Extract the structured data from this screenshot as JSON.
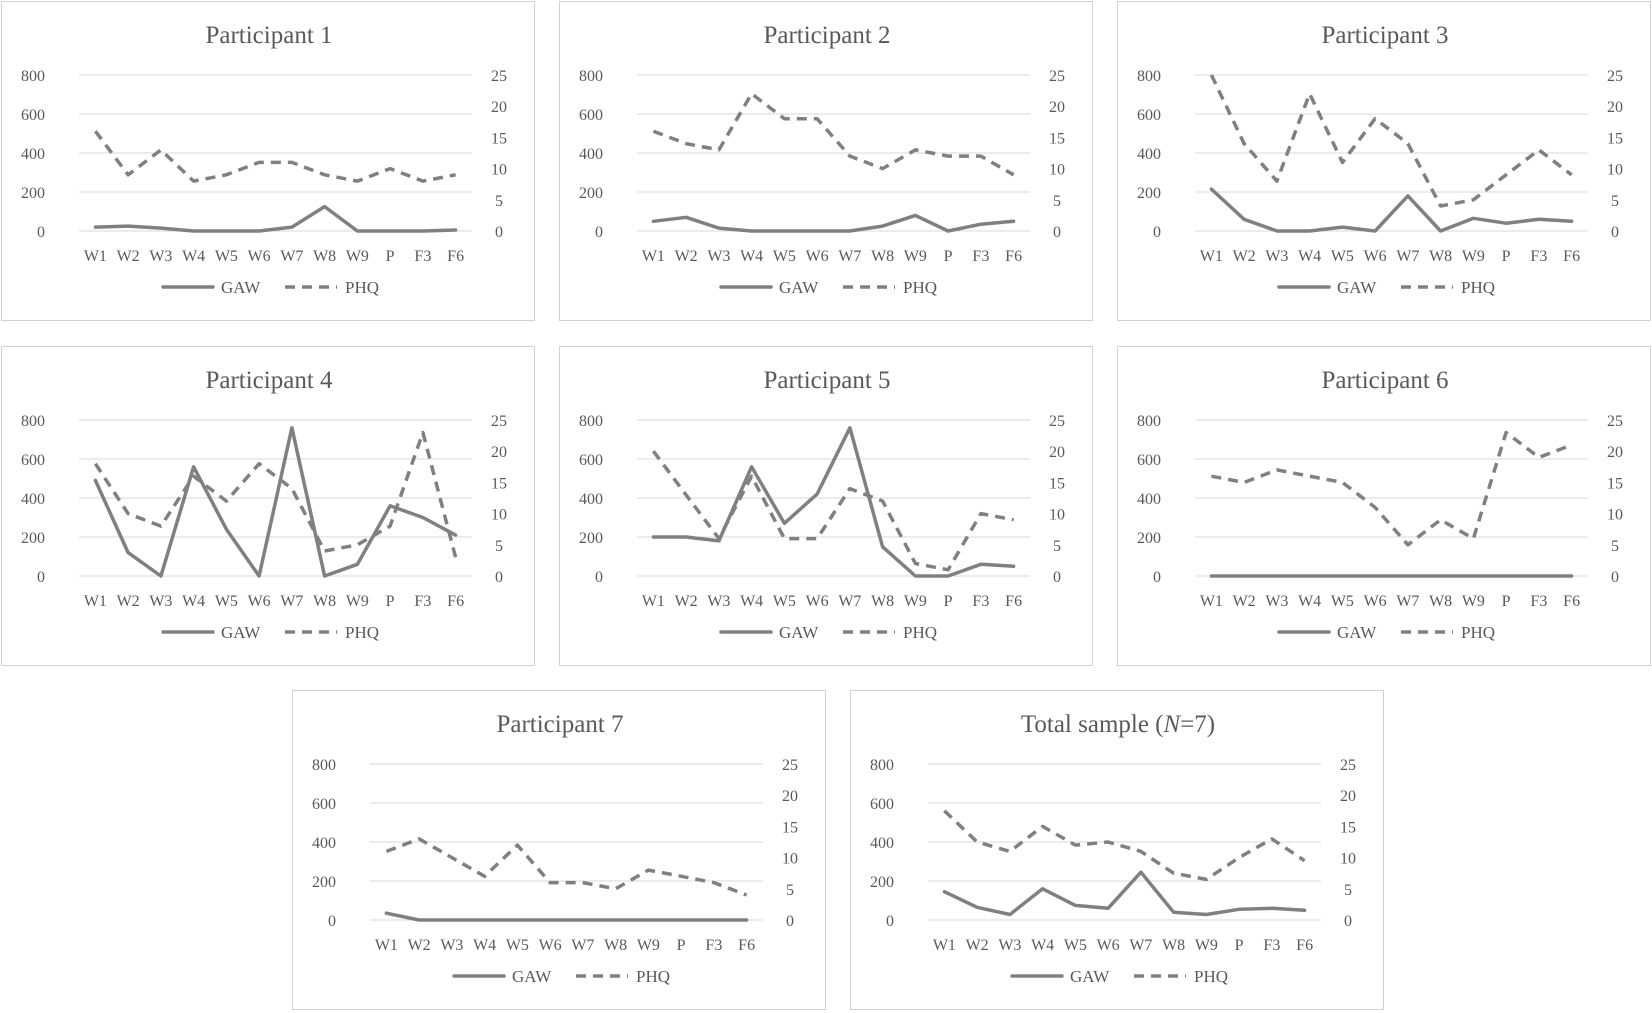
{
  "legend": {
    "gaw": "GAW",
    "phq": "PHQ"
  },
  "chart_data": [
    {
      "type": "line",
      "title": "Participant 1",
      "categories": [
        "W1",
        "W2",
        "W3",
        "W4",
        "W5",
        "W6",
        "W7",
        "W8",
        "W9",
        "P",
        "F3",
        "F6"
      ],
      "ylim_left": [
        0,
        800
      ],
      "yticks_left": [
        0,
        200,
        400,
        600,
        800
      ],
      "ylim_right": [
        0,
        25
      ],
      "yticks_right": [
        0,
        5,
        10,
        15,
        20,
        25
      ],
      "series": [
        {
          "name": "GAW",
          "axis": "left",
          "values": [
            20,
            25,
            15,
            0,
            0,
            0,
            20,
            125,
            0,
            0,
            0,
            5
          ]
        },
        {
          "name": "PHQ",
          "axis": "right",
          "values": [
            16,
            9,
            13,
            8,
            9,
            11,
            11,
            9,
            8,
            10,
            8,
            9
          ]
        }
      ]
    },
    {
      "type": "line",
      "title": "Participant 2",
      "categories": [
        "W1",
        "W2",
        "W3",
        "W4",
        "W5",
        "W6",
        "W7",
        "W8",
        "W9",
        "P",
        "F3",
        "F6"
      ],
      "ylim_left": [
        0,
        800
      ],
      "yticks_left": [
        0,
        200,
        400,
        600,
        800
      ],
      "ylim_right": [
        0,
        25
      ],
      "yticks_right": [
        0,
        5,
        10,
        15,
        20,
        25
      ],
      "series": [
        {
          "name": "GAW",
          "axis": "left",
          "values": [
            50,
            70,
            15,
            0,
            0,
            0,
            0,
            25,
            80,
            0,
            35,
            50
          ]
        },
        {
          "name": "PHQ",
          "axis": "right",
          "values": [
            16,
            14,
            13,
            22,
            18,
            18,
            12,
            10,
            13,
            12,
            12,
            9
          ]
        }
      ]
    },
    {
      "type": "line",
      "title": "Participant 3",
      "categories": [
        "W1",
        "W2",
        "W3",
        "W4",
        "W5",
        "W6",
        "W7",
        "W8",
        "W9",
        "P",
        "F3",
        "F6"
      ],
      "ylim_left": [
        0,
        800
      ],
      "yticks_left": [
        0,
        200,
        400,
        600,
        800
      ],
      "ylim_right": [
        0,
        25
      ],
      "yticks_right": [
        0,
        5,
        10,
        15,
        20,
        25
      ],
      "series": [
        {
          "name": "GAW",
          "axis": "left",
          "values": [
            215,
            60,
            0,
            0,
            20,
            0,
            180,
            0,
            65,
            40,
            60,
            50
          ]
        },
        {
          "name": "PHQ",
          "axis": "right",
          "values": [
            25,
            14,
            8,
            22,
            11,
            18,
            14,
            4,
            5,
            9,
            13,
            9
          ]
        }
      ]
    },
    {
      "type": "line",
      "title": "Participant 4",
      "categories": [
        "W1",
        "W2",
        "W3",
        "W4",
        "W5",
        "W6",
        "W7",
        "W8",
        "W9",
        "P",
        "F3",
        "F6"
      ],
      "ylim_left": [
        0,
        800
      ],
      "yticks_left": [
        0,
        200,
        400,
        600,
        800
      ],
      "ylim_right": [
        0,
        25
      ],
      "yticks_right": [
        0,
        5,
        10,
        15,
        20,
        25
      ],
      "series": [
        {
          "name": "GAW",
          "axis": "left",
          "values": [
            490,
            120,
            0,
            560,
            240,
            0,
            760,
            0,
            60,
            360,
            300,
            210
          ]
        },
        {
          "name": "PHQ",
          "axis": "right",
          "values": [
            18,
            10,
            8,
            16,
            12,
            18,
            14,
            4,
            5,
            8,
            23,
            3
          ]
        }
      ]
    },
    {
      "type": "line",
      "title": "Participant 5",
      "categories": [
        "W1",
        "W2",
        "W3",
        "W4",
        "W5",
        "W6",
        "W7",
        "W8",
        "W9",
        "P",
        "F3",
        "F6"
      ],
      "ylim_left": [
        0,
        800
      ],
      "yticks_left": [
        0,
        200,
        400,
        600,
        800
      ],
      "ylim_right": [
        0,
        25
      ],
      "yticks_right": [
        0,
        5,
        10,
        15,
        20,
        25
      ],
      "series": [
        {
          "name": "GAW",
          "axis": "left",
          "values": [
            200,
            200,
            180,
            560,
            270,
            420,
            760,
            150,
            0,
            0,
            60,
            50
          ]
        },
        {
          "name": "PHQ",
          "axis": "right",
          "values": [
            20,
            13,
            6,
            16,
            6,
            6,
            14,
            12,
            2,
            1,
            10,
            9
          ]
        }
      ]
    },
    {
      "type": "line",
      "title": "Participant 6",
      "categories": [
        "W1",
        "W2",
        "W3",
        "W4",
        "W5",
        "W6",
        "W7",
        "W8",
        "W9",
        "P",
        "F3",
        "F6"
      ],
      "ylim_left": [
        0,
        800
      ],
      "yticks_left": [
        0,
        200,
        400,
        600,
        800
      ],
      "ylim_right": [
        0,
        25
      ],
      "yticks_right": [
        0,
        5,
        10,
        15,
        20,
        25
      ],
      "series": [
        {
          "name": "GAW",
          "axis": "left",
          "values": [
            0,
            0,
            0,
            0,
            0,
            0,
            0,
            0,
            0,
            0,
            0,
            0
          ]
        },
        {
          "name": "PHQ",
          "axis": "right",
          "values": [
            16,
            15,
            17,
            16,
            15,
            11,
            5,
            9,
            6,
            23,
            19,
            21
          ]
        }
      ]
    },
    {
      "type": "line",
      "title": "Participant 7",
      "categories": [
        "W1",
        "W2",
        "W3",
        "W4",
        "W5",
        "W6",
        "W7",
        "W8",
        "W9",
        "P",
        "F3",
        "F6"
      ],
      "ylim_left": [
        0,
        800
      ],
      "yticks_left": [
        0,
        200,
        400,
        600,
        800
      ],
      "ylim_right": [
        0,
        25
      ],
      "yticks_right": [
        0,
        5,
        10,
        15,
        20,
        25
      ],
      "series": [
        {
          "name": "GAW",
          "axis": "left",
          "values": [
            35,
            0,
            0,
            0,
            0,
            0,
            0,
            0,
            0,
            0,
            0,
            0
          ]
        },
        {
          "name": "PHQ",
          "axis": "right",
          "values": [
            11,
            13,
            10,
            7,
            12,
            6,
            6,
            5,
            8,
            7,
            6,
            4
          ]
        }
      ]
    },
    {
      "type": "line",
      "title": "Total sample (",
      "title_italic": "N",
      "title_suffix": "=7)",
      "categories": [
        "W1",
        "W2",
        "W3",
        "W4",
        "W5",
        "W6",
        "W7",
        "W8",
        "W9",
        "P",
        "F3",
        "F6"
      ],
      "ylim_left": [
        0,
        800
      ],
      "yticks_left": [
        0,
        200,
        400,
        600,
        800
      ],
      "ylim_right": [
        0,
        25
      ],
      "yticks_right": [
        0,
        5,
        10,
        15,
        20,
        25
      ],
      "series": [
        {
          "name": "GAW",
          "axis": "left",
          "values": [
            145,
            65,
            28,
            160,
            75,
            60,
            245,
            40,
            28,
            55,
            60,
            50
          ]
        },
        {
          "name": "PHQ",
          "axis": "right",
          "values": [
            17.5,
            12.5,
            11,
            15,
            12,
            12.5,
            11,
            7.5,
            6.5,
            10,
            13,
            9.5
          ]
        }
      ]
    }
  ]
}
